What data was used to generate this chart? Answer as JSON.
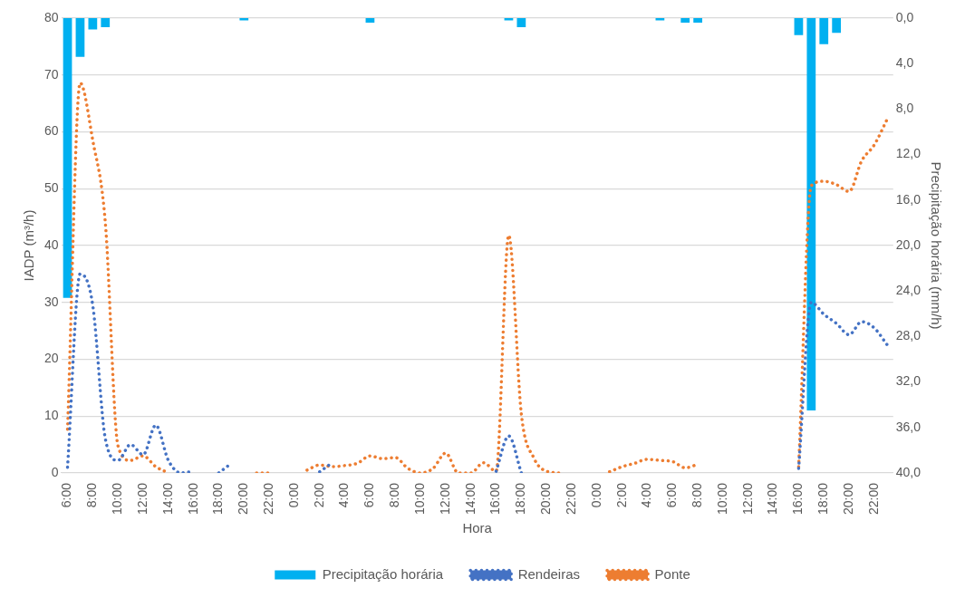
{
  "chart_data": {
    "type": "line",
    "xlabel": "Hora",
    "ylabel": "IADP (m³/h)",
    "y2label": "Precipitação horária (mm/h)",
    "categories": [
      "6:00",
      null,
      "8:00",
      null,
      "10:00",
      null,
      "12:00",
      null,
      "14:00",
      null,
      "16:00",
      null,
      "18:00",
      null,
      "20:00",
      null,
      "22:00",
      null,
      "0:00",
      null,
      "2:00",
      null,
      "4:00",
      null,
      "6:00",
      null,
      "8:00",
      null,
      "10:00",
      null,
      "12:00",
      null,
      "14:00",
      null,
      "16:00",
      null,
      "18:00",
      null,
      "20:00",
      null,
      "22:00",
      null,
      "0:00",
      null,
      "2:00",
      null,
      "4:00",
      null,
      "6:00",
      null,
      "8:00",
      null,
      "10:00",
      null,
      "12:00",
      null,
      "14:00",
      null,
      "16:00",
      null,
      "18:00",
      null,
      "20:00",
      null,
      "22:00",
      null
    ],
    "series": [
      {
        "name": "Precipitação horária",
        "type": "bar",
        "axis": "y2",
        "color": "#00b0f0",
        "values": [
          24.6,
          3.4,
          1.0,
          0.8,
          0,
          0,
          0,
          0,
          0,
          0,
          0,
          0,
          0,
          0,
          0.2,
          0,
          0,
          0,
          0,
          0,
          0,
          0,
          0,
          0,
          0.4,
          0,
          0,
          0,
          0,
          0,
          0,
          0,
          0,
          0,
          0,
          0.2,
          0.8,
          0,
          0,
          0,
          0,
          0,
          0,
          0,
          0,
          0,
          0,
          0.2,
          0,
          0.4,
          0.4,
          0,
          0,
          0,
          0,
          0,
          0,
          0,
          1.5,
          34.5,
          2.3,
          1.3,
          0,
          0,
          0,
          0
        ]
      },
      {
        "name": "Rendeiras",
        "color": "#4472c4",
        "values": [
          1.0,
          35,
          29.5,
          6,
          2.2,
          5.0,
          3.2,
          8.4,
          2.2,
          0,
          0.3,
          null,
          0,
          1.7,
          null,
          null,
          null,
          null,
          null,
          null,
          0.2,
          1.8,
          null,
          null,
          null,
          null,
          null,
          null,
          null,
          null,
          null,
          null,
          null,
          null,
          0.3,
          6.5,
          0,
          null,
          null,
          null,
          null,
          null,
          null,
          null,
          null,
          null,
          null,
          null,
          null,
          null,
          null,
          null,
          null,
          null,
          null,
          null,
          null,
          null,
          0.8,
          30,
          27.9,
          26.3,
          24.3,
          26.6,
          25.5,
          22.6
        ]
      },
      {
        "name": "Ponte",
        "color": "#ed7d31",
        "values": [
          7.7,
          68.6,
          58.5,
          44,
          4.8,
          2.2,
          3.0,
          1.1,
          0,
          null,
          null,
          null,
          null,
          null,
          null,
          0,
          0,
          null,
          null,
          0.5,
          1.4,
          1.1,
          1.3,
          1.7,
          3.0,
          2.5,
          2.7,
          0.8,
          0,
          0.8,
          3.5,
          0,
          0,
          1.8,
          0.3,
          41.8,
          10.4,
          2.6,
          0.3,
          0,
          null,
          null,
          null,
          0.2,
          1.1,
          1.7,
          2.4,
          2.2,
          2.0,
          0.9,
          1.5,
          null,
          null,
          null,
          null,
          null,
          null,
          null,
          1.1,
          50.5,
          51.3,
          50.7,
          49.5,
          54.9,
          57.7,
          62.1
        ]
      }
    ],
    "ylim": [
      0,
      80
    ],
    "yticks": [
      0,
      10,
      20,
      30,
      40,
      50,
      60,
      70,
      80
    ],
    "y2lim": [
      40,
      0
    ],
    "y2ticks": [
      {
        "value": 0,
        "label": "0,0"
      },
      {
        "value": 4,
        "label": "4,0"
      },
      {
        "value": 8,
        "label": "8,0"
      },
      {
        "value": 12,
        "label": "12,0"
      },
      {
        "value": 16,
        "label": "16,0"
      },
      {
        "value": 20,
        "label": "20,0"
      },
      {
        "value": 24,
        "label": "24,0"
      },
      {
        "value": 28,
        "label": "28,0"
      },
      {
        "value": 32,
        "label": "32,0"
      },
      {
        "value": 36,
        "label": "36,0"
      },
      {
        "value": 40,
        "label": "40,0"
      }
    ],
    "grid": "y",
    "legend": "bottom",
    "marker": "none",
    "line_style": "dotted"
  }
}
